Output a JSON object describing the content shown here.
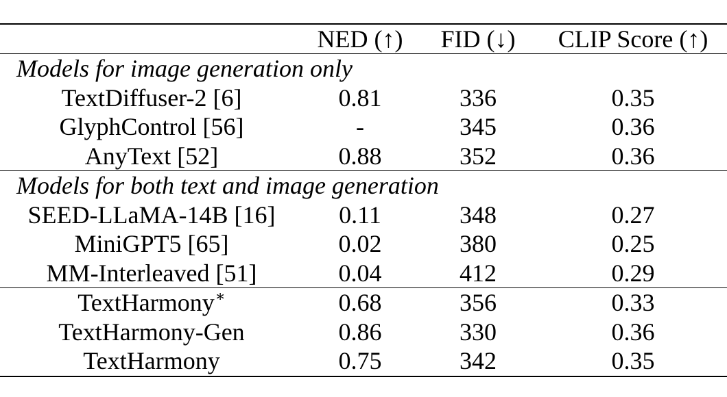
{
  "table": {
    "columns": [
      "",
      "NED (↑)",
      "FID (↓)",
      "CLIP Score (↑)"
    ],
    "groups": [
      {
        "title": "Models for image generation only",
        "rows": [
          {
            "model": "TextDiffuser-2 [6]",
            "ned": "0.81",
            "fid": "336",
            "clip": "0.35",
            "bold": []
          },
          {
            "model": "GlyphControl [56]",
            "ned": "-",
            "fid": "345",
            "clip": "0.36",
            "bold": [
              "clip"
            ]
          },
          {
            "model": "AnyText [52]",
            "ned": "0.88",
            "fid": "352",
            "clip": "0.36",
            "bold": [
              "ned",
              "clip"
            ]
          }
        ]
      },
      {
        "title": "Models for both text and image generation",
        "rows": [
          {
            "model": "SEED-LLaMA-14B [16]",
            "ned": "0.11",
            "fid": "348",
            "clip": "0.27",
            "bold": []
          },
          {
            "model": "MiniGPT5 [65]",
            "ned": "0.02",
            "fid": "380",
            "clip": "0.25",
            "bold": []
          },
          {
            "model": "MM-Interleaved [51]",
            "ned": "0.04",
            "fid": "412",
            "clip": "0.29",
            "bold": []
          }
        ]
      },
      {
        "title": "",
        "rows": [
          {
            "model": "TextHarmony",
            "marker": "∗",
            "ned": "0.68",
            "fid": "356",
            "clip": "0.33",
            "bold": []
          },
          {
            "model": "TextHarmony-Gen",
            "ned": "0.86",
            "fid": "330",
            "clip": "0.36",
            "bold": [
              "fid",
              "clip"
            ]
          },
          {
            "model": "TextHarmony",
            "ned": "0.75",
            "fid": "342",
            "clip": "0.35",
            "bold": []
          }
        ]
      }
    ]
  },
  "chart_data": {
    "type": "table",
    "columns": [
      "",
      "NED (↑)",
      "FID (↓)",
      "CLIP Score (↑)"
    ],
    "rows": [
      [
        "TextDiffuser-2 [6]",
        0.81,
        336,
        0.35
      ],
      [
        "GlyphControl [56]",
        null,
        345,
        0.36
      ],
      [
        "AnyText [52]",
        0.88,
        352,
        0.36
      ],
      [
        "SEED-LLaMA-14B [16]",
        0.11,
        348,
        0.27
      ],
      [
        "MiniGPT5 [65]",
        0.02,
        380,
        0.25
      ],
      [
        "MM-Interleaved [51]",
        0.04,
        412,
        0.29
      ],
      [
        "TextHarmony*",
        0.68,
        356,
        0.33
      ],
      [
        "TextHarmony-Gen",
        0.86,
        330,
        0.36
      ],
      [
        "TextHarmony",
        0.75,
        342,
        0.35
      ]
    ]
  }
}
